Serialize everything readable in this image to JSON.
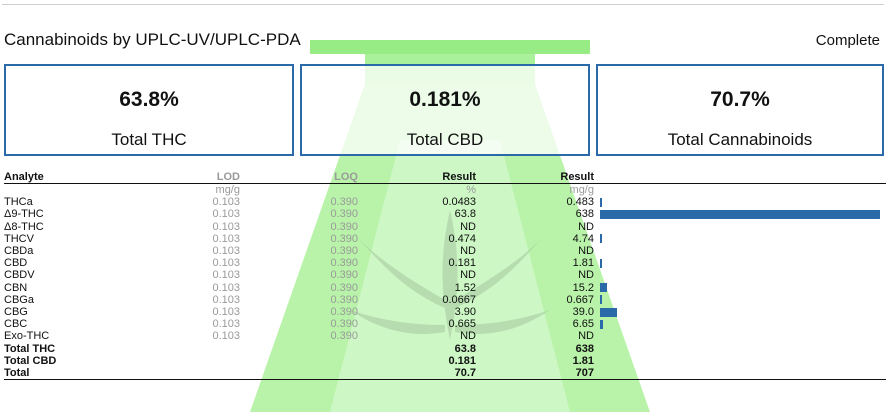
{
  "section": {
    "title": "Cannabinoids by UPLC-UV/UPLC-PDA",
    "status": "Complete"
  },
  "kpis": [
    {
      "value": "63.8%",
      "label": "Total THC"
    },
    {
      "value": "0.181%",
      "label": "Total CBD"
    },
    {
      "value": "70.7%",
      "label": "Total Cannabinoids"
    }
  ],
  "table": {
    "headers": {
      "analyte": "Analyte",
      "lod": "LOD",
      "loq": "LOQ",
      "result_pct": "Result",
      "result_mg": "Result"
    },
    "units": {
      "lod": "mg/g",
      "result_pct": "%",
      "result_mg": "mg/g"
    },
    "rows": [
      {
        "analyte": "THCa",
        "lod": "0.103",
        "loq": "0.390",
        "pct": "0.0483",
        "mg": "0.483",
        "bar_mg": 0.483
      },
      {
        "analyte": "Δ9-THC",
        "lod": "0.103",
        "loq": "0.390",
        "pct": "63.8",
        "mg": "638",
        "bar_mg": 638
      },
      {
        "analyte": "Δ8-THC",
        "lod": "0.103",
        "loq": "0.390",
        "pct": "ND",
        "mg": "ND",
        "bar_mg": 0
      },
      {
        "analyte": "THCV",
        "lod": "0.103",
        "loq": "0.390",
        "pct": "0.474",
        "mg": "4.74",
        "bar_mg": 4.74
      },
      {
        "analyte": "CBDa",
        "lod": "0.103",
        "loq": "0.390",
        "pct": "ND",
        "mg": "ND",
        "bar_mg": 0
      },
      {
        "analyte": "CBD",
        "lod": "0.103",
        "loq": "0.390",
        "pct": "0.181",
        "mg": "1.81",
        "bar_mg": 1.81
      },
      {
        "analyte": "CBDV",
        "lod": "0.103",
        "loq": "0.390",
        "pct": "ND",
        "mg": "ND",
        "bar_mg": 0
      },
      {
        "analyte": "CBN",
        "lod": "0.103",
        "loq": "0.390",
        "pct": "1.52",
        "mg": "15.2",
        "bar_mg": 15.2
      },
      {
        "analyte": "CBGa",
        "lod": "0.103",
        "loq": "0.390",
        "pct": "0.0667",
        "mg": "0.667",
        "bar_mg": 0.667
      },
      {
        "analyte": "CBG",
        "lod": "0.103",
        "loq": "0.390",
        "pct": "3.90",
        "mg": "39.0",
        "bar_mg": 39.0
      },
      {
        "analyte": "CBC",
        "lod": "0.103",
        "loq": "0.390",
        "pct": "0.665",
        "mg": "6.65",
        "bar_mg": 6.65
      },
      {
        "analyte": "Exo-THC",
        "lod": "0.103",
        "loq": "0.390",
        "pct": "ND",
        "mg": "ND",
        "bar_mg": 0
      }
    ],
    "totals": [
      {
        "analyte": "Total THC",
        "pct": "63.8",
        "mg": "638"
      },
      {
        "analyte": "Total CBD",
        "pct": "0.181",
        "mg": "1.81"
      },
      {
        "analyte": "Total",
        "pct": "70.7",
        "mg": "707"
      }
    ],
    "bar_max_mg": 638,
    "bar_color": "#2a6aa8"
  },
  "watermark_color": "#44dd22"
}
